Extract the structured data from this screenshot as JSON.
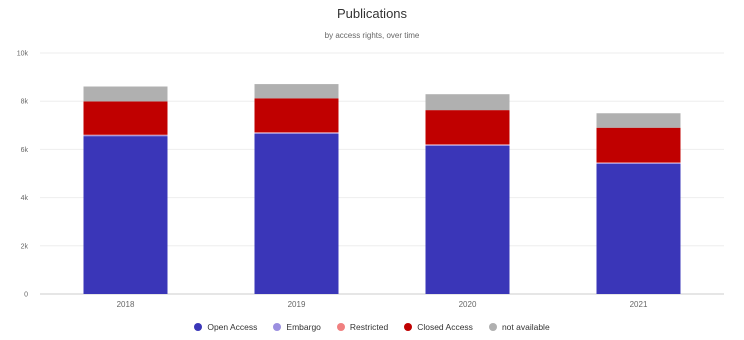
{
  "chart_data": {
    "type": "bar",
    "stacked": true,
    "title": "Publications",
    "subtitle": "by access rights, over time",
    "categories": [
      "2018",
      "2019",
      "2020",
      "2021"
    ],
    "ylim": [
      0,
      10000
    ],
    "yticks": [
      0,
      2000,
      4000,
      6000,
      8000,
      10000
    ],
    "ytick_labels": [
      "0",
      "2k",
      "4k",
      "6k",
      "8k",
      "10k"
    ],
    "grid": true,
    "legend_position": "bottom",
    "series": [
      {
        "name": "Open Access",
        "color": "#3a36b8",
        "values": [
          6550,
          6650,
          6150,
          5400
        ]
      },
      {
        "name": "Embargo",
        "color": "#9b8fe0",
        "values": [
          40,
          40,
          40,
          40
        ]
      },
      {
        "name": "Restricted",
        "color": "#f08080",
        "values": [
          20,
          20,
          20,
          20
        ]
      },
      {
        "name": "Closed Access",
        "color": "#c00000",
        "values": [
          1380,
          1410,
          1420,
          1440
        ]
      },
      {
        "name": "not available",
        "color": "#b0b0b0",
        "values": [
          620,
          590,
          660,
          600
        ]
      }
    ]
  }
}
